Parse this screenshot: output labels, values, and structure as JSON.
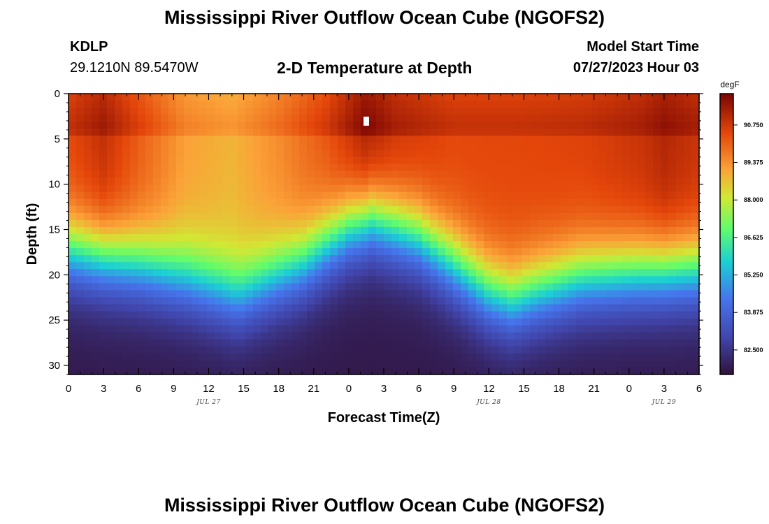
{
  "header": {
    "title": "Mississippi River Outflow Ocean Cube (NGOFS2)",
    "station_id": "KDLP",
    "station_coords": "29.1210N  89.5470W",
    "subtitle": "2-D Temperature at Depth",
    "model_start_label": "Model Start Time",
    "model_start_value": "07/27/2023 Hour 03"
  },
  "footer": {
    "title": "Mississippi River Outflow Ocean Cube (NGOFS2)"
  },
  "chart_data": {
    "type": "heatmap",
    "title": "2-D Temperature at Depth",
    "xlabel": "Forecast Time(Z)",
    "ylabel": "Depth (ft)",
    "x_range_hours": [
      0,
      54
    ],
    "y_range_ft": [
      0,
      31
    ],
    "x_tick_values": [
      0,
      3,
      6,
      9,
      12,
      15,
      18,
      21,
      24,
      27,
      30,
      33,
      36,
      39,
      42,
      45,
      48,
      51,
      54
    ],
    "x_tick_labels": [
      "0",
      "3",
      "6",
      "9",
      "12",
      "15",
      "18",
      "21",
      "0",
      "3",
      "6",
      "9",
      "12",
      "15",
      "18",
      "21",
      "0",
      "3",
      "6"
    ],
    "date_labels": [
      {
        "text": "JUL 27",
        "hour": 12
      },
      {
        "text": "JUL 28",
        "hour": 36
      },
      {
        "text": "JUL 29",
        "hour": 51
      }
    ],
    "y_ticks": [
      0,
      5,
      10,
      15,
      20,
      25,
      30
    ],
    "y_tick_labels": [
      "0",
      "5",
      "10",
      "15",
      "20",
      "25",
      "30"
    ],
    "colorbar": {
      "unit": "degF",
      "min": 81.6,
      "max": 91.9,
      "tick_values": [
        82.5,
        83.875,
        85.25,
        86.625,
        88.0,
        89.375,
        90.75
      ],
      "tick_labels": [
        "82.500",
        "83.875",
        "85.250",
        "86.625",
        "88.000",
        "89.375",
        "90.750"
      ]
    },
    "surface_temps_by_hour": [
      [
        0,
        90.9
      ],
      [
        3,
        91.4
      ],
      [
        6,
        90.6
      ],
      [
        10,
        89.6
      ],
      [
        14,
        89.3
      ],
      [
        18,
        89.9
      ],
      [
        22,
        90.7
      ],
      [
        25.5,
        91.8
      ],
      [
        28,
        91.3
      ],
      [
        33,
        90.9
      ],
      [
        38,
        90.9
      ],
      [
        44,
        91.0
      ],
      [
        49,
        91.3
      ],
      [
        51,
        91.6
      ],
      [
        54,
        91.3
      ]
    ],
    "thermocline_depth_ft_by_hour": [
      [
        0,
        17.5
      ],
      [
        6,
        19.0
      ],
      [
        10,
        20.5
      ],
      [
        14.5,
        22.5
      ],
      [
        20,
        19.0
      ],
      [
        24,
        15.0
      ],
      [
        26,
        14.0
      ],
      [
        30,
        16.0
      ],
      [
        34,
        20.0
      ],
      [
        36,
        22.0
      ],
      [
        38,
        23.0
      ],
      [
        40,
        22.0
      ],
      [
        44,
        20.5
      ],
      [
        48,
        20.0
      ],
      [
        54,
        19.5
      ]
    ],
    "bottom_temp_degF": 81.8,
    "missing_cell": {
      "hour": 25.5,
      "depth_ft": 3.0
    }
  }
}
